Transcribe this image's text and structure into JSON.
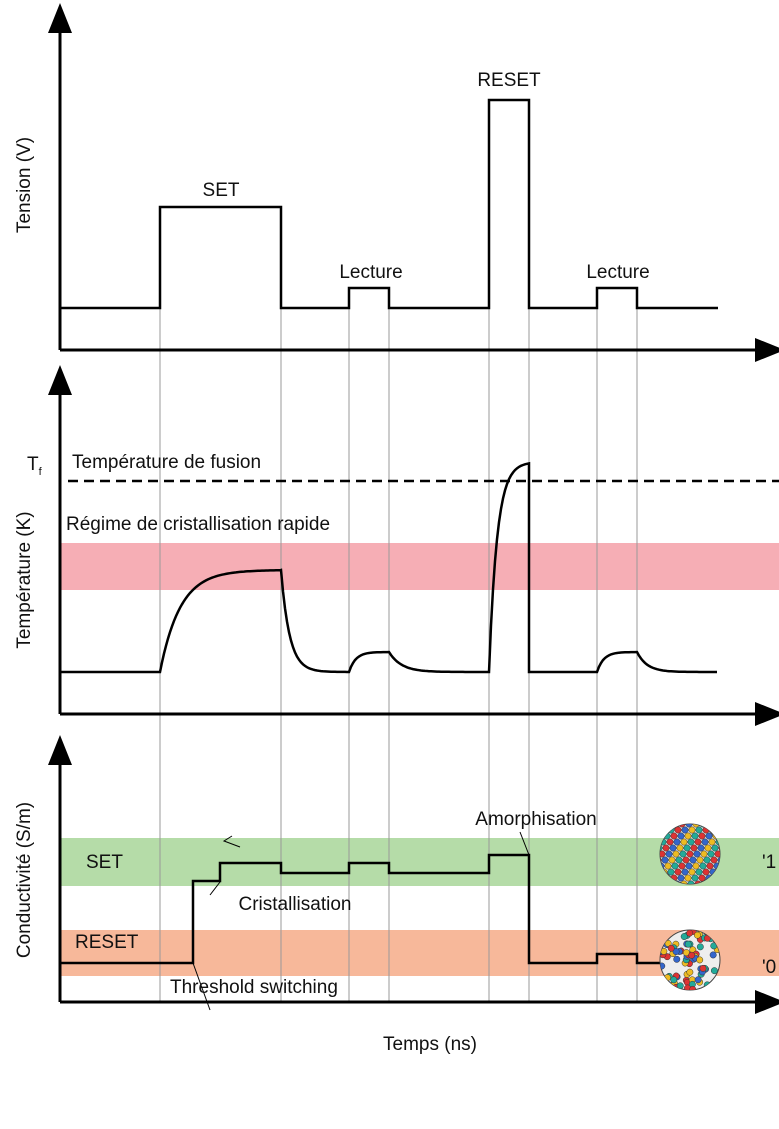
{
  "tension": {
    "axis_label": "Tension (V)",
    "set": "SET",
    "lecture1": "Lecture",
    "reset": "RESET",
    "lecture2": "Lecture"
  },
  "temperature": {
    "axis_label": "Température (K)",
    "tf": {
      "main": "T",
      "sub": "f"
    },
    "fusion": "Température de fusion",
    "regime": "Régime de cristallisation rapide"
  },
  "conductivity": {
    "axis_label": "Conductivité (S/m)",
    "set": "SET",
    "reset": "RESET",
    "amorphisation": "Amorphisation",
    "cristallisation": "Cristallisation",
    "threshold": "Threshold switching",
    "state1": "'1",
    "state0": "'0"
  },
  "x_axis_label": "Temps (ns)"
}
